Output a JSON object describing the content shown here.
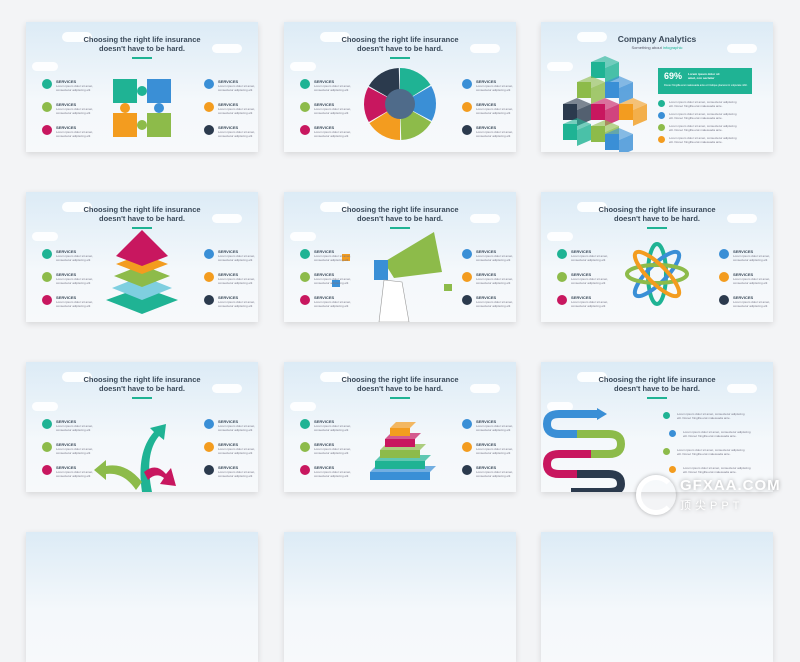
{
  "colors": {
    "teal": "#1fb394",
    "blue": "#3a8fd6",
    "orange": "#f39c1f",
    "green": "#8dbb4a",
    "magenta": "#c8175f",
    "navy": "#2b3a4d"
  },
  "common": {
    "title_line1": "Choosing the right life insurance",
    "title_line2": "doesn't have to be hard.",
    "service_label": "SERVICES",
    "service_text": "Lorem ipsum dolor sit amet, consectetur adipiscing elit",
    "detail_text": "Lorem ipsum dolor sit amet, consectetur adipiscing elit. Donec fringilla erat malesuada ante."
  },
  "slides": [
    {
      "type": "puzzle"
    },
    {
      "type": "donut"
    },
    {
      "type": "analytics",
      "title": "Company Analytics",
      "subtitle_prefix": "Something about",
      "subtitle_highlight": "infographic",
      "percent": "69%",
      "percent_text": "Lorem ipsum dolor sit amet, con sectetur",
      "percent_detail": "Donec fringilla erat malesuada ante et tristique placerat in vulputate nibh.",
      "icons": [
        "house-icon",
        "pen-icon",
        "truck-icon",
        "smiley-icon"
      ]
    },
    {
      "type": "pyramid"
    },
    {
      "type": "megaphone"
    },
    {
      "type": "knot"
    },
    {
      "type": "arrows3"
    },
    {
      "type": "steps"
    },
    {
      "type": "s-arrows",
      "icons": [
        "house-icon",
        "pen-icon",
        "truck-icon",
        "smiley-icon"
      ]
    }
  ],
  "watermark": {
    "text": "GFXAA.COM",
    "subtext": "顶尖PPT"
  }
}
